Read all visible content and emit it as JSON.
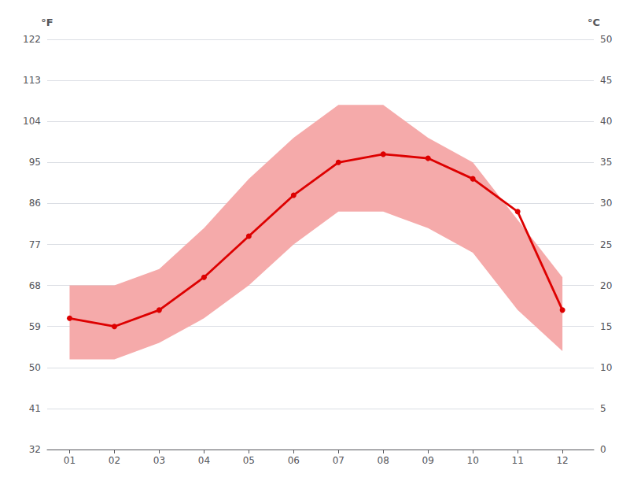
{
  "chart_data": {
    "type": "line",
    "x": [
      1,
      2,
      3,
      4,
      5,
      6,
      7,
      8,
      9,
      10,
      11,
      12
    ],
    "xlim": [
      0.5,
      12.7
    ],
    "xticks": [
      {
        "value": 1,
        "label": "01"
      },
      {
        "value": 2,
        "label": "02"
      },
      {
        "value": 3,
        "label": "03"
      },
      {
        "value": 4,
        "label": "04"
      },
      {
        "value": 5,
        "label": "05"
      },
      {
        "value": 6,
        "label": "06"
      },
      {
        "value": 7,
        "label": "07"
      },
      {
        "value": 8,
        "label": "08"
      },
      {
        "value": 9,
        "label": "09"
      },
      {
        "value": 10,
        "label": "10"
      },
      {
        "value": 11,
        "label": "11"
      },
      {
        "value": 12,
        "label": "12"
      }
    ],
    "series": [
      {
        "type": "band",
        "color": "#f5aaaa",
        "low": [
          11,
          11,
          13,
          16,
          20,
          25,
          29,
          29,
          27,
          24,
          17,
          12
        ],
        "high": [
          20,
          20,
          22,
          27,
          33,
          38,
          42,
          42,
          38,
          35,
          28,
          21
        ]
      },
      {
        "type": "line",
        "color": "#dd0000",
        "marker": "circle",
        "values": [
          16,
          15,
          17,
          21,
          26,
          31,
          35,
          36,
          35.5,
          33,
          29,
          17
        ]
      }
    ],
    "ylabel": "°C",
    "ylim": [
      0,
      50
    ],
    "yticks": [
      0,
      5,
      10,
      15,
      20,
      25,
      30,
      35,
      40,
      45,
      50
    ],
    "y2label": "°F",
    "y2lim": [
      32,
      122
    ],
    "y2ticks": [
      32,
      41,
      50,
      59,
      68,
      77,
      86,
      95,
      104,
      113,
      122
    ],
    "grid": true
  }
}
